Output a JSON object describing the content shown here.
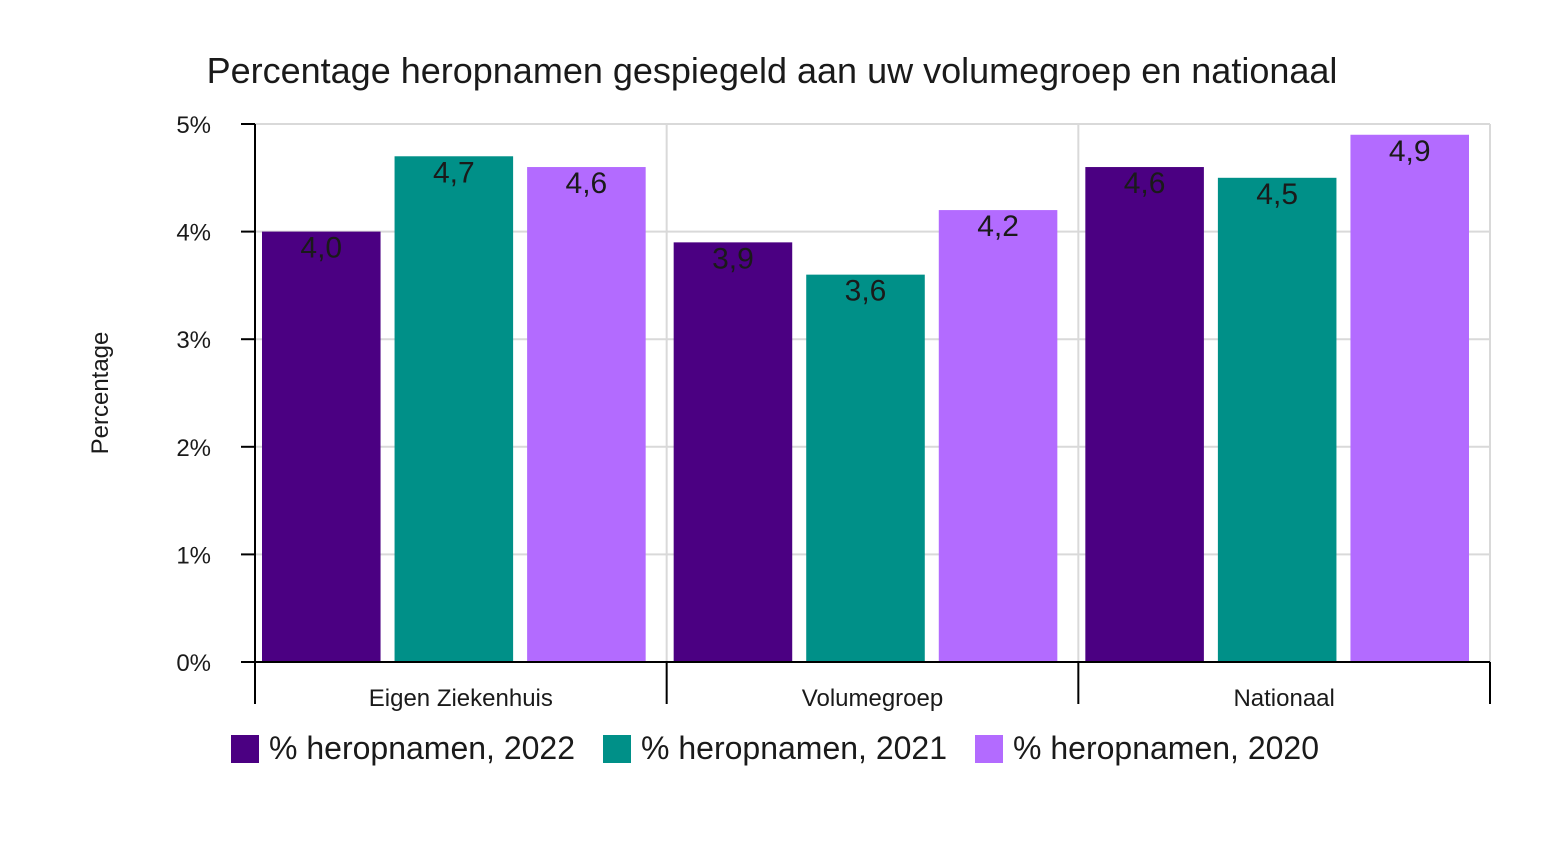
{
  "chart_data": {
    "type": "bar",
    "title": "Percentage heropnamen gespiegeld aan uw volumegroep en nationaal",
    "ylabel": "Percentage",
    "xlabel": "",
    "ylim": [
      0,
      5
    ],
    "yticks": [
      "0%",
      "1%",
      "2%",
      "3%",
      "4%",
      "5%"
    ],
    "categories": [
      "Eigen Ziekenhuis",
      "Volumegroep",
      "Nationaal"
    ],
    "series": [
      {
        "name": "% heropnamen, 2022",
        "color": "#4b0082",
        "values": [
          4.0,
          3.9,
          4.6
        ],
        "labels": [
          "4,0",
          "3,9",
          "4,6"
        ]
      },
      {
        "name": "% heropnamen, 2021",
        "color": "#009088",
        "values": [
          4.7,
          3.6,
          4.5
        ],
        "labels": [
          "4,7",
          "3,6",
          "4,5"
        ]
      },
      {
        "name": "% heropnamen, 2020",
        "color": "#b36bff",
        "values": [
          4.6,
          4.2,
          4.9
        ],
        "labels": [
          "4,6",
          "4,2",
          "4,9"
        ]
      }
    ],
    "grid": true,
    "legend_position": "bottom"
  }
}
